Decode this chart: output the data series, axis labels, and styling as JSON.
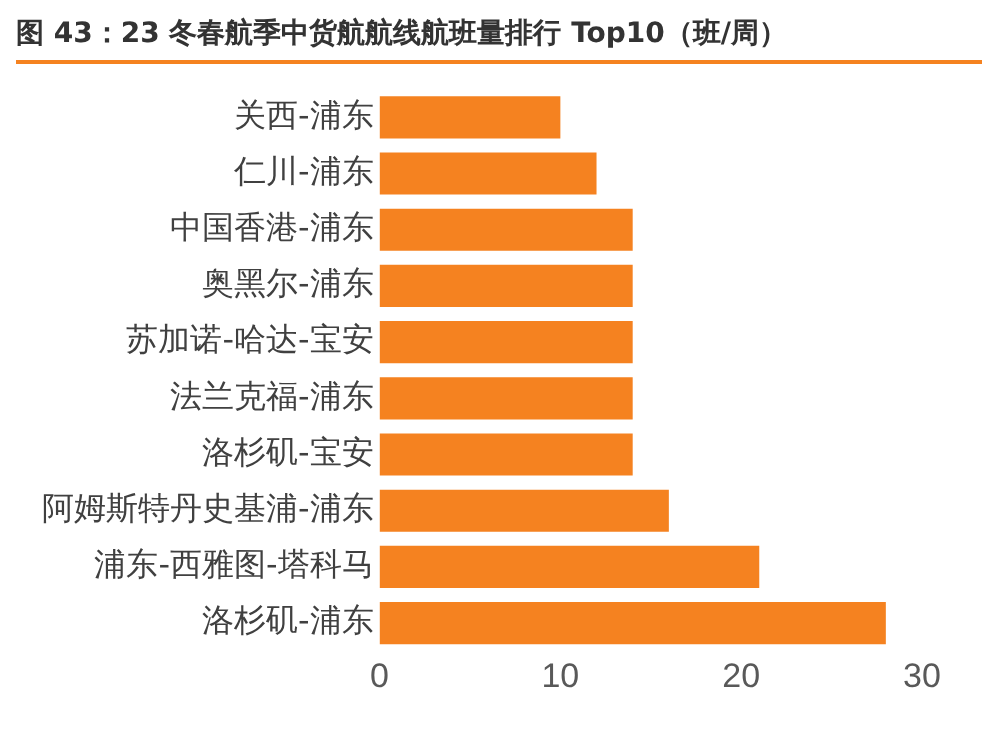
{
  "chart_data": {
    "type": "bar",
    "orientation": "horizontal",
    "title": "图 43：23 冬春航季中货航航线航班量排行 Top10（班/周）",
    "categories": [
      "关西-浦东",
      "仁川-浦东",
      "中国香港-浦东",
      "奥黑尔-浦东",
      "苏加诺-哈达-宝安",
      "法兰克福-浦东",
      "洛杉矶-宝安",
      "阿姆斯特丹史基浦-浦东",
      "浦东-西雅图-塔科马",
      "洛杉矶-浦东"
    ],
    "values": [
      10,
      12,
      14,
      14,
      14,
      14,
      14,
      16,
      21,
      28
    ],
    "color": "#f58220",
    "xlim": [
      0,
      30
    ],
    "xticks": [
      0,
      10,
      20,
      30
    ],
    "grid": false,
    "legend": false
  }
}
